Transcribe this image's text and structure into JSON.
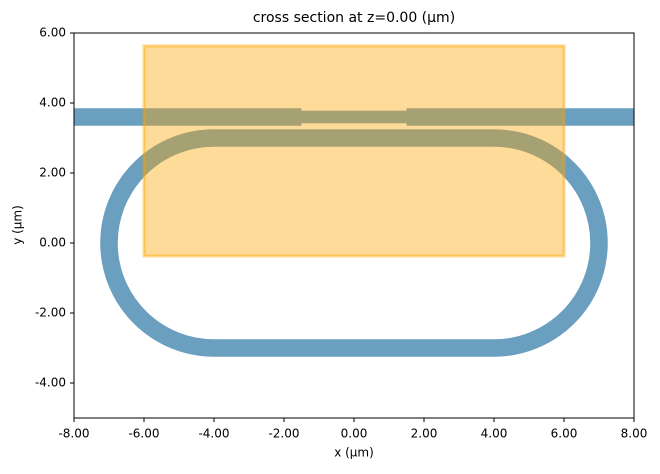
{
  "chart_data": {
    "type": "cross_section",
    "title": "cross section at z=0.00 (μm)",
    "xlabel": "x (μm)",
    "ylabel": "y (μm)",
    "xlim": [
      -8,
      8
    ],
    "ylim": [
      -5,
      6
    ],
    "xticks": [
      {
        "value": -8,
        "label": "-8.00"
      },
      {
        "value": -6,
        "label": "-6.00"
      },
      {
        "value": -4,
        "label": "-4.00"
      },
      {
        "value": -2,
        "label": "-2.00"
      },
      {
        "value": 0,
        "label": "0.00"
      },
      {
        "value": 2,
        "label": "2.00"
      },
      {
        "value": 4,
        "label": "4.00"
      },
      {
        "value": 6,
        "label": "6.00"
      },
      {
        "value": 8,
        "label": "8.00"
      }
    ],
    "yticks": [
      {
        "value": -4,
        "label": "-4.00"
      },
      {
        "value": -2,
        "label": "-2.00"
      },
      {
        "value": 0,
        "label": "0.00"
      },
      {
        "value": 2,
        "label": "2.00"
      },
      {
        "value": 4,
        "label": "4.00"
      },
      {
        "value": 6,
        "label": "6.00"
      }
    ],
    "waveguide_color": "#6a9fbf",
    "region_color": "#ffa500",
    "rects": [
      {
        "x": [
          -8,
          -1.5
        ],
        "y": [
          3.35,
          3.85
        ]
      },
      {
        "x": [
          -1.5,
          1.5
        ],
        "y": [
          3.42,
          3.78
        ]
      },
      {
        "x": [
          1.5,
          8
        ],
        "y": [
          3.35,
          3.85
        ]
      }
    ],
    "racetrack": {
      "straight_x": [
        -4,
        4
      ],
      "center_y": 0,
      "radius": 3,
      "width": 0.5
    },
    "region": {
      "x": [
        -6,
        6
      ],
      "y": [
        -0.37,
        5.63
      ]
    }
  }
}
